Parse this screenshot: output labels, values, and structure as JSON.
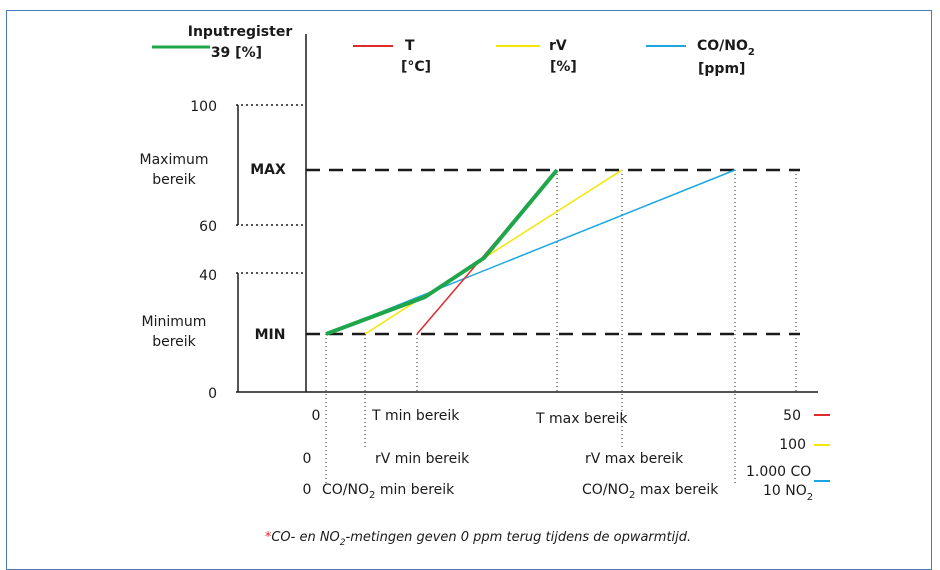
{
  "legend": {
    "input": {
      "line1": "Inputregister",
      "line2": "39 [%]",
      "color": "#1fa64a"
    },
    "t": {
      "line1": "T",
      "line2": "[°C]",
      "color": "#e02b2b"
    },
    "rv": {
      "line1": "rV",
      "line2": "[%]",
      "color": "#f5e600"
    },
    "co": {
      "line1": "CO/NO",
      "sub": "2",
      "line2": "[ppm]",
      "color": "#1aa7e0"
    }
  },
  "y_axis": {
    "ticks": [
      "100",
      "60",
      "40",
      "0"
    ],
    "max_label": "MAX",
    "min_label": "MIN",
    "max_range": [
      "Maximum",
      "bereik"
    ],
    "min_range": [
      "Minimum",
      "bereik"
    ]
  },
  "x_labels": {
    "zero": "0",
    "t_min": "T min bereik",
    "t_max": "T max bereik",
    "rv_min": "rV min bereik",
    "rv_max": "rV max bereik",
    "co_min": "CO/NO",
    "co_min_suffix": " min bereik",
    "co_max": "CO/NO",
    "co_max_suffix": "  max bereik",
    "sub2": "2"
  },
  "x_end": {
    "t": "50",
    "rv": "100",
    "co_line1": "1.000 CO",
    "co_line2": "10 NO",
    "co_sub": "2"
  },
  "footnote": {
    "star": "*",
    "text_a": "CO- en NO",
    "sub": "2",
    "text_b": "-metingen geven 0 ppm terug tijdens de opwarmtijd."
  }
}
